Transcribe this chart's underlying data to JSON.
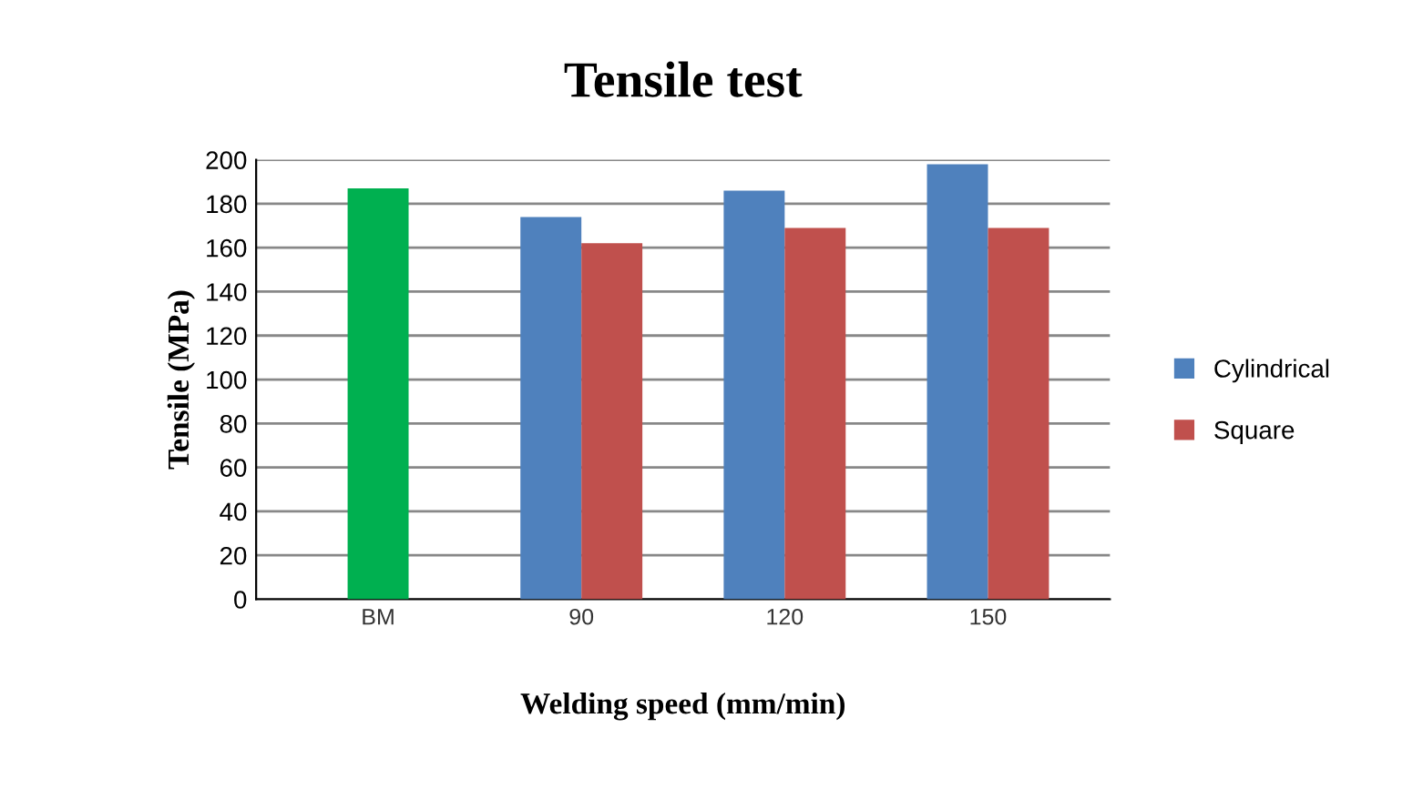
{
  "chart_data": {
    "type": "bar",
    "title": "Tensile test",
    "xlabel": "Welding speed (mm/min)",
    "ylabel": "Tensile (MPa)",
    "categories": [
      "BM",
      "90",
      "120",
      "150"
    ],
    "series": [
      {
        "color": "#00b050",
        "values": [
          187,
          null,
          null,
          null
        ]
      },
      {
        "name": "Cylindrical",
        "color": "#4f81bd",
        "values": [
          null,
          174,
          186,
          198
        ]
      },
      {
        "name": "Square",
        "color": "#c0504d",
        "values": [
          null,
          162,
          169,
          169
        ]
      }
    ],
    "ylim": [
      0,
      200
    ],
    "yticks": [
      0,
      20,
      40,
      60,
      80,
      100,
      120,
      140,
      160,
      180,
      200
    ],
    "grid": "y",
    "legend": "right"
  }
}
